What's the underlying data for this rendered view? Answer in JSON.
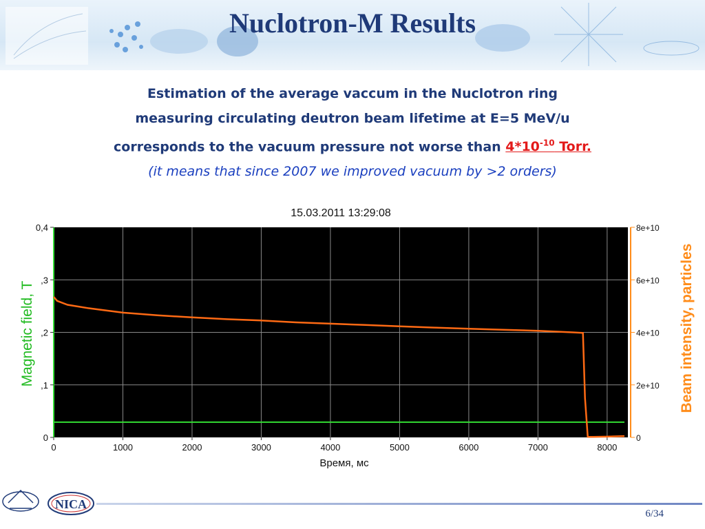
{
  "slide": {
    "title": "Nuclotron-M Results",
    "page_number": "6/34"
  },
  "subtitle": {
    "line1": "Estimation of the average vaccum in the Nuclotron ring",
    "line2": "measuring circulating deutron beam lifetime at E=5 MeV/u",
    "line3_prefix": "corresponds to the vacuum pressure not worse than ",
    "highlight_base": "4*10",
    "highlight_exp": "-10",
    "highlight_unit": " Torr.",
    "note": "(it means that since 2007 we improved vacuum by >2 orders)",
    "colors": {
      "main": "#1f3a78",
      "highlight": "#e31a1a",
      "note": "#1a3fbf"
    }
  },
  "logo": {
    "text": "NICA"
  },
  "chart_data": {
    "type": "line",
    "title": "15.03.2011 13:29:08",
    "xlabel": "Время, мс",
    "ylabel_left": "Magnetic field, T",
    "ylabel_right": "Beam intensity, particles",
    "xlim": [
      0,
      8300
    ],
    "ylim_left": [
      0,
      0.4
    ],
    "ylim_right": [
      0,
      80000000000.0
    ],
    "x_ticks": [
      0,
      1000,
      2000,
      3000,
      4000,
      5000,
      6000,
      7000,
      8000
    ],
    "x_tick_labels": [
      "0",
      "1000",
      "2000",
      "3000",
      "4000",
      "5000",
      "6000",
      "7000",
      "8000"
    ],
    "y_left_ticks": [
      0,
      0.1,
      0.2,
      0.3,
      0.4
    ],
    "y_left_tick_labels": [
      "0",
      ",1",
      ",2",
      ",3",
      "0,4"
    ],
    "y_right_ticks": [
      0,
      20000000000.0,
      40000000000.0,
      60000000000.0,
      80000000000.0
    ],
    "y_right_tick_labels": [
      "0",
      "2e+10",
      "4e+10",
      "6e+10",
      "8e+10"
    ],
    "grid": true,
    "background": "#000000",
    "series": [
      {
        "axis": "left",
        "color": "#33dd33",
        "x": [
          0,
          8250
        ],
        "y": [
          0.029,
          0.029
        ]
      },
      {
        "axis": "right",
        "color": "#ff6a14",
        "x": [
          0,
          50,
          200,
          500,
          1000,
          1500,
          2000,
          2500,
          3000,
          3500,
          4000,
          4500,
          5000,
          5500,
          6000,
          6500,
          7000,
          7500,
          7650,
          7680,
          7720,
          7800,
          8000,
          8250
        ],
        "y": [
          53500000000.0,
          52000000000.0,
          50500000000.0,
          49200000000.0,
          47500000000.0,
          46500000000.0,
          45700000000.0,
          45000000000.0,
          44500000000.0,
          43800000000.0,
          43300000000.0,
          42800000000.0,
          42300000000.0,
          41800000000.0,
          41400000000.0,
          41000000000.0,
          40600000000.0,
          40000000000.0,
          39800000000.0,
          15000000000.0,
          200000000.0,
          200000000.0,
          300000000.0,
          500000000.0
        ]
      }
    ],
    "colors": {
      "left_axis_label": "#22bb22",
      "right_axis_label": "#ff8c1a",
      "right_axis_line": "#ff8c1a",
      "left_axis_line": "#33dd33"
    }
  }
}
